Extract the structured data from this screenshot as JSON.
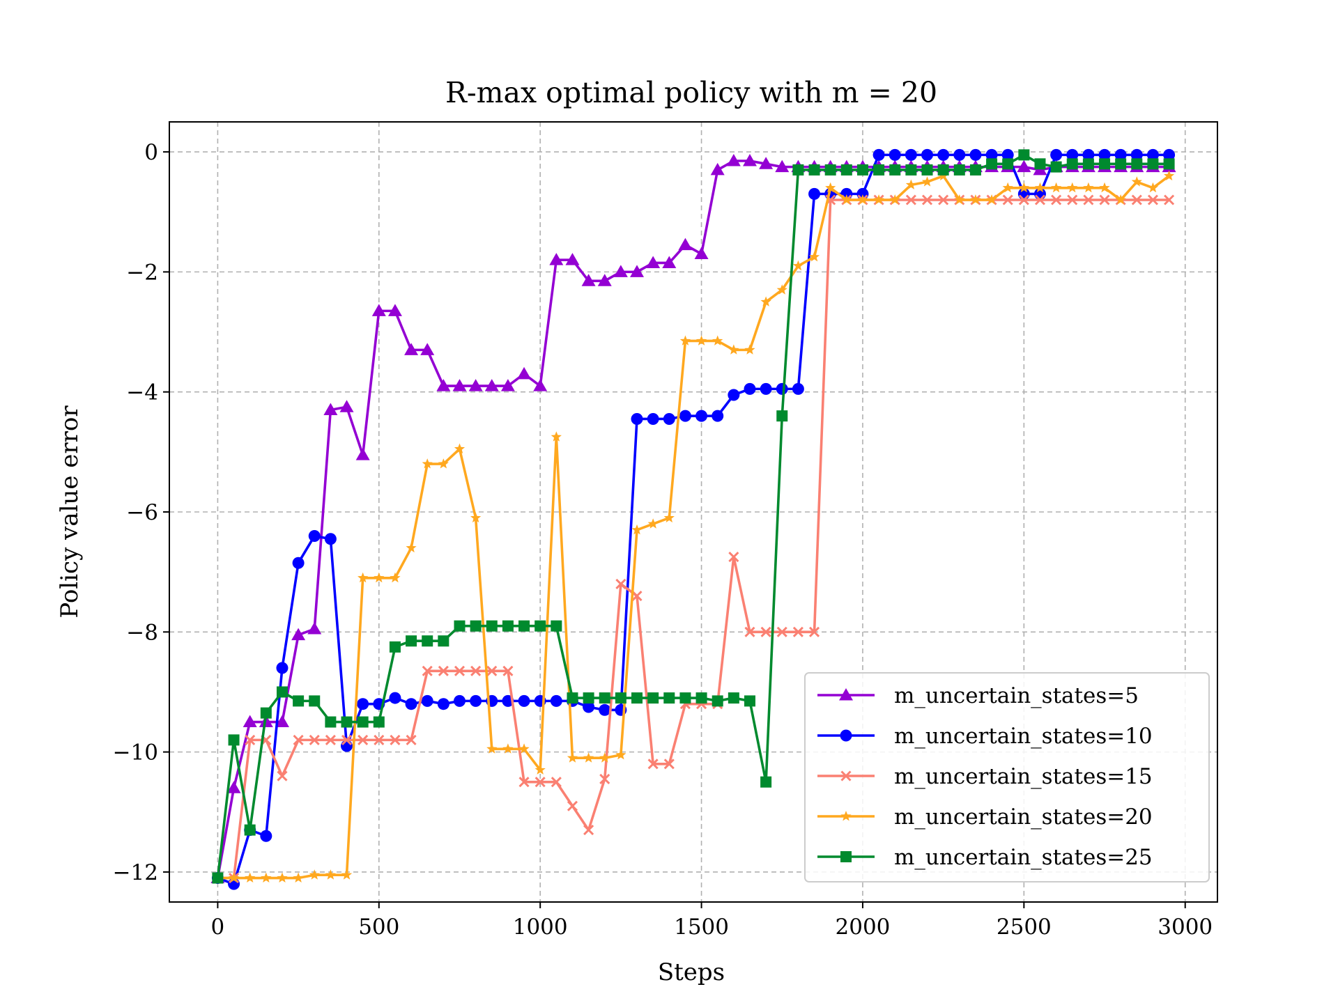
{
  "chart_data": {
    "type": "line",
    "title": "R-max optimal policy with m = 20",
    "xlabel": "Steps",
    "ylabel": "Policy value error",
    "xlim": [
      -150,
      3100
    ],
    "ylim": [
      -12.5,
      0.5
    ],
    "xticks": [
      0,
      500,
      1000,
      1500,
      2000,
      2500,
      3000
    ],
    "yticks": [
      0,
      -2,
      -4,
      -6,
      -8,
      -10,
      -12
    ],
    "xtick_labels": [
      "0",
      "500",
      "1000",
      "1500",
      "2000",
      "2500",
      "3000"
    ],
    "ytick_labels": [
      "0",
      "−2",
      "−4",
      "−6",
      "−8",
      "−10",
      "−12"
    ],
    "grid": true,
    "legend_position": "lower-right",
    "x": [
      0,
      50,
      100,
      150,
      200,
      250,
      300,
      350,
      400,
      450,
      500,
      550,
      600,
      650,
      700,
      750,
      800,
      850,
      900,
      950,
      1000,
      1050,
      1100,
      1150,
      1200,
      1250,
      1300,
      1350,
      1400,
      1450,
      1500,
      1550,
      1600,
      1650,
      1700,
      1750,
      1800,
      1850,
      1900,
      1950,
      2000,
      2050,
      2100,
      2150,
      2200,
      2250,
      2300,
      2350,
      2400,
      2450,
      2500,
      2550,
      2600,
      2650,
      2700,
      2750,
      2800,
      2850,
      2900,
      2950
    ],
    "series": [
      {
        "name": "m_uncertain_states=5",
        "color": "#9400d3",
        "marker": "triangle",
        "values": [
          -12.1,
          -10.6,
          -9.5,
          -9.5,
          -9.5,
          -8.05,
          -7.95,
          -4.3,
          -4.25,
          -5.05,
          -2.65,
          -2.65,
          -3.3,
          -3.3,
          -3.9,
          -3.9,
          -3.9,
          -3.9,
          -3.9,
          -3.7,
          -3.9,
          -1.8,
          -1.8,
          -2.15,
          -2.15,
          -2.0,
          -2.0,
          -1.85,
          -1.85,
          -1.55,
          -1.7,
          -0.3,
          -0.15,
          -0.15,
          -0.2,
          -0.25,
          -0.25,
          -0.25,
          -0.25,
          -0.25,
          -0.25,
          -0.25,
          -0.25,
          -0.25,
          -0.25,
          -0.25,
          -0.25,
          -0.25,
          -0.25,
          -0.25,
          -0.25,
          -0.3,
          -0.25,
          -0.25,
          -0.25,
          -0.25,
          -0.25,
          -0.25,
          -0.25,
          -0.25
        ]
      },
      {
        "name": "m_uncertain_states=10",
        "color": "#0000ff",
        "marker": "circle",
        "values": [
          -12.1,
          -12.2,
          -11.3,
          -11.4,
          -8.6,
          -6.85,
          -6.4,
          -6.45,
          -9.9,
          -9.2,
          -9.2,
          -9.1,
          -9.2,
          -9.15,
          -9.2,
          -9.15,
          -9.15,
          -9.15,
          -9.15,
          -9.15,
          -9.15,
          -9.15,
          -9.15,
          -9.25,
          -9.3,
          -9.3,
          -4.45,
          -4.45,
          -4.45,
          -4.4,
          -4.4,
          -4.4,
          -4.05,
          -3.95,
          -3.95,
          -3.95,
          -3.95,
          -0.7,
          -0.7,
          -0.7,
          -0.7,
          -0.05,
          -0.05,
          -0.05,
          -0.05,
          -0.05,
          -0.05,
          -0.05,
          -0.05,
          -0.05,
          -0.7,
          -0.7,
          -0.05,
          -0.05,
          -0.05,
          -0.05,
          -0.05,
          -0.05,
          -0.05,
          -0.05
        ]
      },
      {
        "name": "m_uncertain_states=15",
        "color": "#fa8072",
        "marker": "x",
        "values": [
          -12.1,
          -12.1,
          -9.8,
          -9.8,
          -10.4,
          -9.8,
          -9.8,
          -9.8,
          -9.8,
          -9.8,
          -9.8,
          -9.8,
          -9.8,
          -8.65,
          -8.65,
          -8.65,
          -8.65,
          -8.65,
          -8.65,
          -10.5,
          -10.5,
          -10.5,
          -10.9,
          -11.3,
          -10.45,
          -7.2,
          -7.4,
          -10.2,
          -10.2,
          -9.2,
          -9.2,
          -9.2,
          -6.75,
          -8.0,
          -8.0,
          -8.0,
          -8.0,
          -8.0,
          -0.8,
          -0.8,
          -0.8,
          -0.8,
          -0.8,
          -0.8,
          -0.8,
          -0.8,
          -0.8,
          -0.8,
          -0.8,
          -0.8,
          -0.8,
          -0.8,
          -0.8,
          -0.8,
          -0.8,
          -0.8,
          -0.8,
          -0.8,
          -0.8,
          -0.8
        ]
      },
      {
        "name": "m_uncertain_states=20",
        "color": "#ffa81f",
        "marker": "star",
        "values": [
          -12.1,
          -12.1,
          -12.1,
          -12.1,
          -12.1,
          -12.1,
          -12.05,
          -12.05,
          -12.05,
          -7.1,
          -7.1,
          -7.1,
          -6.6,
          -5.2,
          -5.2,
          -4.95,
          -6.1,
          -9.95,
          -9.95,
          -9.95,
          -10.3,
          -4.75,
          -10.1,
          -10.1,
          -10.1,
          -10.05,
          -6.3,
          -6.2,
          -6.1,
          -3.15,
          -3.15,
          -3.15,
          -3.3,
          -3.3,
          -2.5,
          -2.3,
          -1.9,
          -1.75,
          -0.6,
          -0.8,
          -0.8,
          -0.8,
          -0.8,
          -0.55,
          -0.5,
          -0.4,
          -0.8,
          -0.8,
          -0.8,
          -0.6,
          -0.6,
          -0.6,
          -0.6,
          -0.6,
          -0.6,
          -0.6,
          -0.8,
          -0.5,
          -0.6,
          -0.4
        ]
      },
      {
        "name": "m_uncertain_states=25",
        "color": "#008a2e",
        "marker": "square",
        "values": [
          -12.1,
          -9.8,
          -11.3,
          -9.35,
          -9.0,
          -9.15,
          -9.15,
          -9.5,
          -9.5,
          -9.5,
          -9.5,
          -8.25,
          -8.15,
          -8.15,
          -8.15,
          -7.9,
          -7.9,
          -7.9,
          -7.9,
          -7.9,
          -7.9,
          -7.9,
          -9.1,
          -9.1,
          -9.1,
          -9.1,
          -9.1,
          -9.1,
          -9.1,
          -9.1,
          -9.1,
          -9.15,
          -9.1,
          -9.15,
          -10.5,
          -4.4,
          -0.3,
          -0.3,
          -0.3,
          -0.3,
          -0.3,
          -0.3,
          -0.3,
          -0.3,
          -0.3,
          -0.3,
          -0.3,
          -0.3,
          -0.2,
          -0.2,
          -0.05,
          -0.2,
          -0.25,
          -0.2,
          -0.2,
          -0.2,
          -0.2,
          -0.2,
          -0.2,
          -0.2
        ]
      }
    ]
  }
}
